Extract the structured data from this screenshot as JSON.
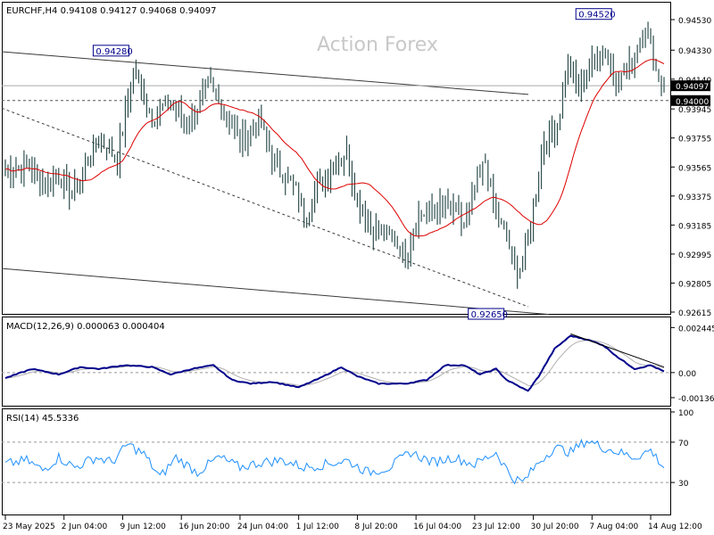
{
  "header": {
    "symbol_line": "EURCHF,H4  0.94108 0.94127 0.94068 0.94097",
    "watermark": "Action Forex"
  },
  "colors": {
    "candle": "#2f4f4f",
    "ma": "#dd0000",
    "macd_line": "#00008b",
    "macd_signal": "#b0b0b0",
    "rsi": "#1e90ff",
    "frame": "#000000"
  },
  "price_panel": {
    "ylim": [
      0.92615,
      0.946
    ],
    "ticks": [
      "0.94530",
      "0.94330",
      "0.94140",
      "0.93945",
      "0.93755",
      "0.93565",
      "0.93375",
      "0.93185",
      "0.92995",
      "0.92805",
      "0.92615"
    ],
    "current_price": "0.94097",
    "hline_price": "0.94000",
    "annotations": [
      {
        "label": "0.94280",
        "price": 0.9428,
        "index": 47
      },
      {
        "label": "0.94520",
        "price": 0.9452,
        "index": 228
      },
      {
        "label": "0.92650",
        "price": 0.9265,
        "index": 191
      }
    ]
  },
  "macd_panel": {
    "title": "MACD(12,26,9) 0.000063 0.000404",
    "ticks": [
      "0.002445",
      "0.00",
      "-0.00136"
    ],
    "ylim": [
      -0.0017,
      0.0028
    ]
  },
  "rsi_panel": {
    "title": "RSI(14) 45.5336",
    "ticks": [
      "100",
      "70",
      "30"
    ],
    "ylim": [
      0,
      100
    ],
    "levels": [
      70,
      30
    ]
  },
  "x_axis": {
    "labels": [
      "23 May 2025",
      "2 Jun 04:00",
      "9 Jun 12:00",
      "16 Jun 20:00",
      "24 Jun 04:00",
      "1 Jul 12:00",
      "8 Jul 20:00",
      "16 Jul 04:00",
      "23 Jul 12:00",
      "30 Jul 20:00",
      "7 Aug 04:00",
      "14 Aug 12:00"
    ],
    "label_indices": [
      0,
      22,
      44,
      66,
      88,
      110,
      132,
      154,
      176,
      198,
      220,
      242
    ]
  },
  "chart_data": {
    "type": "line",
    "title": "EURCHF,H4",
    "bars": 248,
    "price_anchors": [
      [
        0,
        0.9355
      ],
      [
        8,
        0.9358
      ],
      [
        15,
        0.9345
      ],
      [
        20,
        0.9352
      ],
      [
        25,
        0.9338
      ],
      [
        35,
        0.9375
      ],
      [
        42,
        0.9362
      ],
      [
        48,
        0.942
      ],
      [
        55,
        0.939
      ],
      [
        62,
        0.94
      ],
      [
        68,
        0.9383
      ],
      [
        76,
        0.941
      ],
      [
        82,
        0.9395
      ],
      [
        88,
        0.9372
      ],
      [
        95,
        0.9388
      ],
      [
        102,
        0.9355
      ],
      [
        108,
        0.9345
      ],
      [
        112,
        0.9325
      ],
      [
        118,
        0.9345
      ],
      [
        123,
        0.9358
      ],
      [
        128,
        0.9365
      ],
      [
        132,
        0.9335
      ],
      [
        138,
        0.9315
      ],
      [
        145,
        0.931
      ],
      [
        150,
        0.93
      ],
      [
        155,
        0.9325
      ],
      [
        162,
        0.933
      ],
      [
        168,
        0.9328
      ],
      [
        172,
        0.9318
      ],
      [
        176,
        0.934
      ],
      [
        180,
        0.936
      ],
      [
        184,
        0.9325
      ],
      [
        188,
        0.931
      ],
      [
        191,
        0.929
      ],
      [
        194,
        0.929
      ],
      [
        198,
        0.933
      ],
      [
        202,
        0.9375
      ],
      [
        207,
        0.9385
      ],
      [
        211,
        0.9425
      ],
      [
        215,
        0.9405
      ],
      [
        220,
        0.9425
      ],
      [
        225,
        0.9432
      ],
      [
        230,
        0.9412
      ],
      [
        235,
        0.9425
      ],
      [
        240,
        0.945
      ],
      [
        244,
        0.942
      ],
      [
        247,
        0.941
      ]
    ],
    "macd_anchors": [
      [
        0,
        -0.0003
      ],
      [
        10,
        0.0002
      ],
      [
        20,
        -0.0001
      ],
      [
        28,
        0.0003
      ],
      [
        35,
        0.0002
      ],
      [
        45,
        0.0004
      ],
      [
        55,
        0.0003
      ],
      [
        62,
        -0.0001
      ],
      [
        70,
        0.0002
      ],
      [
        78,
        0.0004
      ],
      [
        85,
        -0.0004
      ],
      [
        92,
        -0.0006
      ],
      [
        100,
        -0.0005
      ],
      [
        110,
        -0.0008
      ],
      [
        118,
        -0.0003
      ],
      [
        126,
        0.0003
      ],
      [
        132,
        -0.0002
      ],
      [
        140,
        -0.0006
      ],
      [
        150,
        -0.0006
      ],
      [
        158,
        -0.0004
      ],
      [
        165,
        0.0004
      ],
      [
        172,
        0.0004
      ],
      [
        178,
        -0.0001
      ],
      [
        184,
        0.0002
      ],
      [
        188,
        -0.0004
      ],
      [
        192,
        -0.0007
      ],
      [
        196,
        -0.001
      ],
      [
        200,
        -0.0002
      ],
      [
        206,
        0.0013
      ],
      [
        212,
        0.002
      ],
      [
        218,
        0.0018
      ],
      [
        224,
        0.0015
      ],
      [
        230,
        0.0008
      ],
      [
        236,
        0.0002
      ],
      [
        242,
        0.0004
      ],
      [
        247,
        6e-05
      ]
    ],
    "rsi_anchors": [
      [
        0,
        48
      ],
      [
        8,
        52
      ],
      [
        14,
        42
      ],
      [
        20,
        55
      ],
      [
        26,
        45
      ],
      [
        34,
        55
      ],
      [
        40,
        50
      ],
      [
        46,
        68
      ],
      [
        52,
        58
      ],
      [
        58,
        35
      ],
      [
        64,
        55
      ],
      [
        72,
        40
      ],
      [
        80,
        55
      ],
      [
        88,
        45
      ],
      [
        96,
        50
      ],
      [
        104,
        52
      ],
      [
        112,
        45
      ],
      [
        120,
        48
      ],
      [
        128,
        52
      ],
      [
        136,
        40
      ],
      [
        144,
        45
      ],
      [
        152,
        60
      ],
      [
        160,
        50
      ],
      [
        168,
        55
      ],
      [
        176,
        48
      ],
      [
        184,
        60
      ],
      [
        190,
        35
      ],
      [
        194,
        30
      ],
      [
        200,
        50
      ],
      [
        206,
        65
      ],
      [
        212,
        60
      ],
      [
        218,
        72
      ],
      [
        224,
        65
      ],
      [
        230,
        60
      ],
      [
        236,
        55
      ],
      [
        242,
        62
      ],
      [
        247,
        45
      ]
    ],
    "series": [
      {
        "name": "EURCHF,H4",
        "role": "price"
      },
      {
        "name": "MACD(12,26,9)",
        "role": "indicator"
      },
      {
        "name": "RSI(14)",
        "role": "indicator"
      }
    ]
  }
}
